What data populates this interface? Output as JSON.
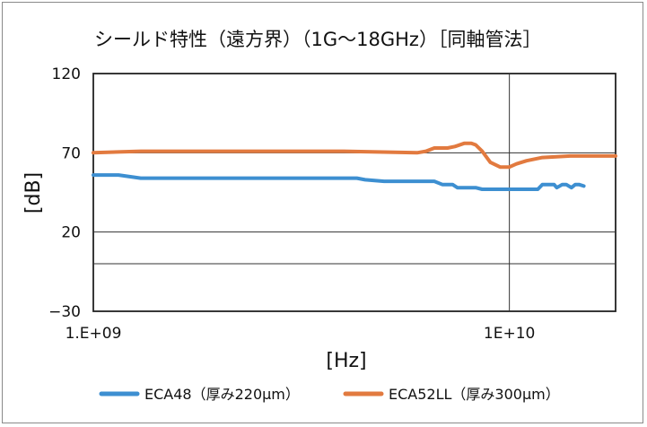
{
  "chart_data": {
    "type": "line",
    "title": "シールド特性（遠方界）（1G～18GHz）［同軸管法］",
    "xlabel": "[Hz]",
    "ylabel": "[dB]",
    "x_scale": "log",
    "xlim": [
      1000000000,
      18000000000
    ],
    "ylim": [
      -30,
      120
    ],
    "y_ticks": [
      {
        "value": 120,
        "label": "120"
      },
      {
        "value": 70,
        "label": "70"
      },
      {
        "value": 20,
        "label": "20"
      },
      {
        "value": -30,
        "label": "−30"
      }
    ],
    "y_gridlines": [
      70,
      20,
      0
    ],
    "x_ticks": [
      {
        "value": 1000000000,
        "label": "1.E+09"
      },
      {
        "value": 10000000000,
        "label": "1E+10"
      }
    ],
    "x_gridlines": [
      10000000000
    ],
    "grid": true,
    "legend_position": "bottom",
    "series": [
      {
        "name": "ECA48（厚み220μm）",
        "color": "#3d8fd1",
        "x": [
          1000000000,
          1150000000,
          1300000000,
          2000000000,
          3000000000,
          4300000000,
          4500000000,
          5000000000,
          6000000000,
          6600000000,
          6900000000,
          7300000000,
          7500000000,
          8300000000,
          8600000000,
          10000000000,
          11000000000,
          11700000000,
          12000000000,
          12800000000,
          13000000000,
          13400000000,
          13700000000,
          14100000000,
          14400000000,
          14700000000,
          15100000000
        ],
        "values": [
          56,
          56,
          54,
          54,
          54,
          54,
          53,
          52,
          52,
          52,
          50,
          50,
          48,
          48,
          47,
          47,
          47,
          47,
          50,
          50,
          48,
          50,
          50,
          48,
          50,
          50,
          49
        ]
      },
      {
        "name": "ECA52LL（厚み300μm）",
        "color": "#e27a3f",
        "x": [
          1000000000,
          1300000000,
          2000000000,
          3000000000,
          4000000000,
          6000000000,
          6300000000,
          6600000000,
          7100000000,
          7400000000,
          7800000000,
          8100000000,
          8300000000,
          8600000000,
          9000000000,
          9500000000,
          10000000000,
          10400000000,
          11000000000,
          12000000000,
          14000000000,
          16000000000,
          18000000000
        ],
        "values": [
          70,
          71,
          71,
          71,
          71,
          70,
          71,
          73,
          73,
          74,
          76,
          76,
          75,
          71,
          64,
          61,
          61,
          63,
          65,
          67,
          68,
          68,
          68
        ]
      }
    ]
  }
}
